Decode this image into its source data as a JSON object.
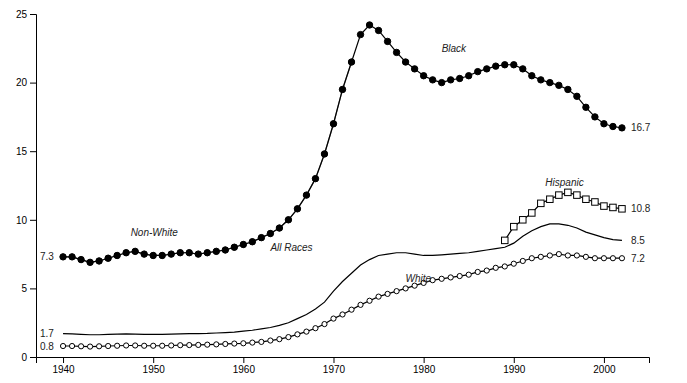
{
  "chart_data": {
    "type": "line",
    "xlim": [
      1937,
      2005
    ],
    "ylim": [
      0,
      25
    ],
    "xticks": [
      1940,
      1950,
      1960,
      1970,
      1980,
      1990,
      2000
    ],
    "yticks": [
      0,
      5,
      10,
      15,
      20,
      25
    ],
    "series": [
      {
        "x": [
          1940,
          1941,
          1942,
          1943,
          1944,
          1945,
          1946,
          1947,
          1948,
          1949,
          1950,
          1951,
          1952,
          1953,
          1954,
          1955,
          1956,
          1957,
          1958,
          1959,
          1960,
          1961,
          1962,
          1963,
          1964,
          1965,
          1966,
          1967,
          1968,
          1969,
          1970,
          1971,
          1972
        ],
        "values": [
          7.3,
          7.3,
          7.1,
          6.9,
          7.0,
          7.2,
          7.4,
          7.6,
          7.7,
          7.5,
          7.4,
          7.4,
          7.5,
          7.6,
          7.6,
          7.5,
          7.6,
          7.7,
          7.8,
          8.0,
          8.2,
          8.4,
          8.7,
          9.0,
          9.4,
          10.0,
          10.8,
          11.8,
          13.0,
          14.8,
          17.0,
          19.5,
          21.5
        ],
        "color": "#777777",
        "marker": "circle"
      },
      {
        "x": [
          1940,
          1941,
          1942,
          1943,
          1944,
          1945,
          1946,
          1947,
          1948,
          1949,
          1950,
          1951,
          1952,
          1953,
          1954,
          1955,
          1956,
          1957,
          1958,
          1959,
          1960,
          1961,
          1962,
          1963,
          1964,
          1965,
          1966,
          1967,
          1968,
          1969,
          1970,
          1971,
          1972,
          1973,
          1974,
          1975,
          1976,
          1977,
          1978,
          1979,
          1980,
          1981,
          1982,
          1983,
          1984,
          1985,
          1986,
          1987,
          1988,
          1989,
          1990,
          1991,
          1992,
          1993,
          1994,
          1995,
          1996,
          1997,
          1998,
          1999,
          2000,
          2001,
          2002
        ],
        "values": [
          7.3,
          7.3,
          7.1,
          6.9,
          7.0,
          7.2,
          7.4,
          7.6,
          7.7,
          7.5,
          7.4,
          7.4,
          7.5,
          7.6,
          7.6,
          7.5,
          7.6,
          7.7,
          7.8,
          8.0,
          8.2,
          8.4,
          8.7,
          9.0,
          9.4,
          10.0,
          10.8,
          11.8,
          13.0,
          14.8,
          17.0,
          19.5,
          21.5,
          23.5,
          24.2,
          23.8,
          23.0,
          22.2,
          21.5,
          21.0,
          20.5,
          20.2,
          20.0,
          20.2,
          20.3,
          20.5,
          20.8,
          21.0,
          21.2,
          21.3,
          21.3,
          21.0,
          20.5,
          20.2,
          20.0,
          19.8,
          19.5,
          19.0,
          18.2,
          17.5,
          17.0,
          16.8,
          16.7
        ],
        "color": "black",
        "marker": "circle"
      },
      {
        "x": [
          1940,
          1941,
          1942,
          1943,
          1944,
          1945,
          1946,
          1947,
          1948,
          1949,
          1950,
          1951,
          1952,
          1953,
          1954,
          1955,
          1956,
          1957,
          1958,
          1959,
          1960,
          1961,
          1962,
          1963,
          1964,
          1965,
          1966,
          1967,
          1968,
          1969,
          1970,
          1971,
          1972,
          1973,
          1974,
          1975,
          1976,
          1977,
          1978,
          1979,
          1980,
          1981,
          1982,
          1983,
          1984,
          1985,
          1986,
          1987,
          1988,
          1989,
          1990,
          1991,
          1992,
          1993,
          1994,
          1995,
          1996,
          1997,
          1998,
          1999,
          2000,
          2001,
          2002
        ],
        "values": [
          1.7,
          1.68,
          1.65,
          1.62,
          1.62,
          1.65,
          1.67,
          1.68,
          1.67,
          1.65,
          1.65,
          1.65,
          1.67,
          1.68,
          1.7,
          1.71,
          1.72,
          1.75,
          1.78,
          1.82,
          1.88,
          1.95,
          2.05,
          2.15,
          2.3,
          2.5,
          2.8,
          3.1,
          3.5,
          4.0,
          4.8,
          5.5,
          6.1,
          6.7,
          7.1,
          7.4,
          7.5,
          7.6,
          7.6,
          7.5,
          7.4,
          7.4,
          7.45,
          7.5,
          7.55,
          7.6,
          7.7,
          7.8,
          7.9,
          8.0,
          8.3,
          8.8,
          9.2,
          9.5,
          9.7,
          9.7,
          9.6,
          9.4,
          9.1,
          8.9,
          8.7,
          8.55,
          8.5
        ],
        "color": "black",
        "marker": "none"
      },
      {
        "x": [
          1940,
          1941,
          1942,
          1943,
          1944,
          1945,
          1946,
          1947,
          1948,
          1949,
          1950,
          1951,
          1952,
          1953,
          1954,
          1955,
          1956,
          1957,
          1958,
          1959,
          1960,
          1961,
          1962,
          1963,
          1964,
          1965,
          1966,
          1967,
          1968,
          1969,
          1970,
          1971,
          1972,
          1973,
          1974,
          1975,
          1976,
          1977,
          1978,
          1979,
          1980,
          1981,
          1982,
          1983,
          1984,
          1985,
          1986,
          1987,
          1988,
          1989,
          1990,
          1991,
          1992,
          1993,
          1994,
          1995,
          1996,
          1997,
          1998,
          1999,
          2000,
          2001,
          2002
        ],
        "values": [
          0.8,
          0.8,
          0.78,
          0.76,
          0.78,
          0.8,
          0.82,
          0.84,
          0.84,
          0.82,
          0.82,
          0.82,
          0.84,
          0.86,
          0.87,
          0.88,
          0.9,
          0.92,
          0.95,
          0.98,
          1.0,
          1.05,
          1.1,
          1.2,
          1.3,
          1.45,
          1.65,
          1.85,
          2.1,
          2.4,
          2.8,
          3.1,
          3.45,
          3.8,
          4.1,
          4.4,
          4.6,
          4.8,
          5.0,
          5.2,
          5.4,
          5.6,
          5.7,
          5.8,
          5.9,
          6.0,
          6.2,
          6.3,
          6.5,
          6.6,
          6.8,
          7.0,
          7.2,
          7.3,
          7.4,
          7.5,
          7.4,
          7.4,
          7.3,
          7.2,
          7.2,
          7.2,
          7.2
        ],
        "color": "black",
        "marker": "circle-open"
      },
      {
        "x": [
          1989,
          1990,
          1991,
          1992,
          1993,
          1994,
          1995,
          1996,
          1997,
          1998,
          1999,
          2000,
          2001,
          2002
        ],
        "values": [
          8.5,
          9.5,
          10.0,
          10.5,
          11.2,
          11.5,
          11.8,
          12.0,
          11.8,
          11.5,
          11.3,
          11.0,
          10.9,
          10.8
        ],
        "color": "black",
        "marker": "square-open"
      }
    ],
    "annotations": [
      {
        "text": "7.3",
        "x": 1937.0,
        "y": 7.3
      },
      {
        "text": "1.7",
        "x": 1937.0,
        "y": 1.7
      },
      {
        "text": "0.8",
        "x": 1937.0,
        "y": 0.8
      },
      {
        "text": "16.7",
        "x": 2003.0,
        "y": 16.7
      },
      {
        "text": "10.8",
        "x": 2003.0,
        "y": 10.8
      },
      {
        "text": "8.5",
        "x": 2003.0,
        "y": 8.5
      },
      {
        "text": "7.2",
        "x": 2003.0,
        "y": 7.2
      },
      {
        "text": "Non-White",
        "x": 1947.5,
        "y": 8.8
      },
      {
        "text": "Black",
        "x": 1982,
        "y": 22.2
      },
      {
        "text": "All Races",
        "x": 1963,
        "y": 7.7
      },
      {
        "text": "White",
        "x": 1978,
        "y": 5.5
      },
      {
        "text": "Hispanic",
        "x": 1993.5,
        "y": 12.5
      }
    ]
  }
}
